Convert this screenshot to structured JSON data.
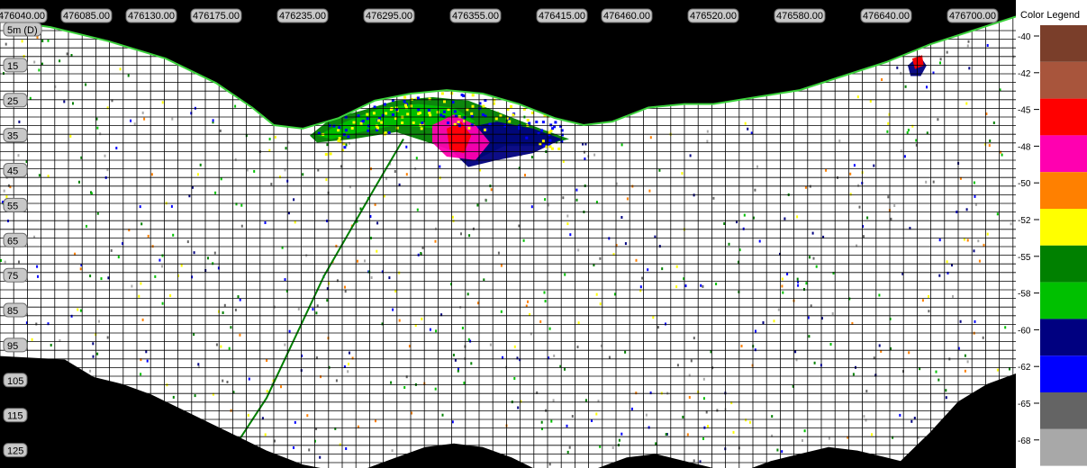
{
  "chart_data": {
    "type": "heatmap",
    "title": "",
    "x_axis": {
      "label": "",
      "range": [
        476025,
        476730
      ],
      "ticks": [
        476040,
        476085,
        476130,
        476175,
        476235,
        476295,
        476355,
        476415,
        476460,
        476520,
        476580,
        476640,
        476700
      ],
      "tick_labels": [
        "476040.00",
        "476085.00",
        "476130.00",
        "476175.00",
        "476235.00",
        "476295.00",
        "476355.00",
        "476415.00",
        "476460.00",
        "476520.00",
        "476580.00",
        "476640.00",
        "476700.00"
      ]
    },
    "y_axis": {
      "label": "",
      "range": [
        5,
        130
      ],
      "inverted": true,
      "ticks": [
        5,
        15,
        25,
        35,
        45,
        55,
        65,
        75,
        85,
        95,
        105,
        115,
        125
      ],
      "tick_labels": [
        "5m (D)",
        "15",
        "25",
        "35",
        "45",
        "55",
        "65",
        "75",
        "85",
        "95",
        "105",
        "115",
        "125"
      ]
    },
    "grid": true,
    "legend": {
      "title": "Color Legend",
      "placement": "right",
      "values": [
        -40,
        -42,
        -45,
        -48,
        -50,
        -52,
        -55,
        -58,
        -60,
        -62,
        -65,
        -68
      ],
      "colors": [
        "#7a3e2a",
        "#a8553c",
        "#ff0000",
        "#ff00b0",
        "#ff8000",
        "#ffff00",
        "#008000",
        "#00c000",
        "#000080",
        "#0000ff",
        "#646464",
        "#a8a8a8"
      ]
    },
    "surface_profile": [
      [
        476025,
        2
      ],
      [
        476060,
        4
      ],
      [
        476100,
        8
      ],
      [
        476140,
        13
      ],
      [
        476175,
        20
      ],
      [
        476200,
        27
      ],
      [
        476215,
        32
      ],
      [
        476235,
        33
      ],
      [
        476260,
        30
      ],
      [
        476285,
        25
      ],
      [
        476310,
        23
      ],
      [
        476335,
        22
      ],
      [
        476360,
        23
      ],
      [
        476385,
        26
      ],
      [
        476410,
        30
      ],
      [
        476430,
        32
      ],
      [
        476450,
        31
      ],
      [
        476475,
        27
      ],
      [
        476500,
        26
      ],
      [
        476520,
        26
      ],
      [
        476550,
        24
      ],
      [
        476580,
        22
      ],
      [
        476610,
        18
      ],
      [
        476640,
        14
      ],
      [
        476670,
        9
      ],
      [
        476700,
        5
      ],
      [
        476730,
        1
      ]
    ],
    "bottom_profile": [
      [
        476025,
        98
      ],
      [
        476070,
        99
      ],
      [
        476090,
        104
      ],
      [
        476110,
        106
      ],
      [
        476130,
        109
      ],
      [
        476150,
        113
      ],
      [
        476170,
        117
      ],
      [
        476190,
        121
      ],
      [
        476210,
        125
      ],
      [
        476235,
        129
      ],
      [
        476260,
        131
      ],
      [
        476280,
        130
      ],
      [
        476300,
        127
      ],
      [
        476320,
        124
      ],
      [
        476340,
        123
      ],
      [
        476360,
        124
      ],
      [
        476380,
        127
      ],
      [
        476395,
        130
      ],
      [
        476410,
        131
      ],
      [
        476440,
        130
      ],
      [
        476460,
        127
      ],
      [
        476480,
        126
      ],
      [
        476500,
        128
      ],
      [
        476520,
        130
      ],
      [
        476540,
        131
      ],
      [
        476560,
        128
      ],
      [
        476580,
        126
      ],
      [
        476600,
        124
      ],
      [
        476620,
        125
      ],
      [
        476640,
        127
      ],
      [
        476650,
        128
      ],
      [
        476670,
        120
      ],
      [
        476690,
        111
      ],
      [
        476710,
        106
      ],
      [
        476730,
        103
      ]
    ],
    "echo_layers": [
      {
        "level": -55,
        "points": [
          [
            476240,
            35
          ],
          [
            476255,
            30
          ],
          [
            476275,
            28
          ],
          [
            476300,
            25
          ],
          [
            476325,
            24
          ],
          [
            476350,
            25
          ],
          [
            476375,
            29
          ],
          [
            476400,
            33
          ],
          [
            476420,
            36
          ],
          [
            476400,
            38
          ],
          [
            476375,
            38
          ],
          [
            476355,
            42
          ],
          [
            476330,
            38
          ],
          [
            476300,
            34
          ],
          [
            476270,
            36
          ],
          [
            476245,
            37
          ]
        ]
      },
      {
        "level": -58,
        "points": [
          [
            476245,
            35
          ],
          [
            476265,
            31
          ],
          [
            476290,
            27
          ],
          [
            476315,
            26
          ],
          [
            476340,
            27
          ],
          [
            476355,
            31
          ],
          [
            476330,
            33
          ],
          [
            476300,
            32
          ],
          [
            476275,
            34
          ],
          [
            476255,
            36
          ]
        ]
      },
      {
        "level": -60,
        "points": [
          [
            476345,
            33
          ],
          [
            476370,
            31
          ],
          [
            476395,
            33
          ],
          [
            476415,
            36
          ],
          [
            476395,
            40
          ],
          [
            476370,
            42
          ],
          [
            476350,
            44
          ],
          [
            476340,
            40
          ]
        ]
      },
      {
        "level": -48,
        "points": [
          [
            476325,
            32
          ],
          [
            476340,
            29
          ],
          [
            476355,
            32
          ],
          [
            476365,
            37
          ],
          [
            476355,
            42
          ],
          [
            476335,
            41
          ],
          [
            476325,
            37
          ]
        ]
      },
      {
        "level": -45,
        "points": [
          [
            476335,
            33
          ],
          [
            476345,
            31
          ],
          [
            476352,
            35
          ],
          [
            476347,
            40
          ],
          [
            476337,
            39
          ]
        ]
      },
      {
        "level": -60,
        "points": [
          [
            476655,
            15
          ],
          [
            476663,
            12
          ],
          [
            476668,
            15
          ],
          [
            476664,
            18
          ],
          [
            476657,
            18
          ]
        ]
      },
      {
        "level": -45,
        "points": [
          [
            476658,
            13
          ],
          [
            476665,
            12
          ],
          [
            476666,
            15
          ],
          [
            476660,
            16
          ]
        ]
      }
    ],
    "target_trace": {
      "level": -55,
      "points": [
        [
          476175,
          132
        ],
        [
          476210,
          110
        ],
        [
          476250,
          75
        ],
        [
          476285,
          50
        ],
        [
          476305,
          36
        ]
      ]
    }
  }
}
